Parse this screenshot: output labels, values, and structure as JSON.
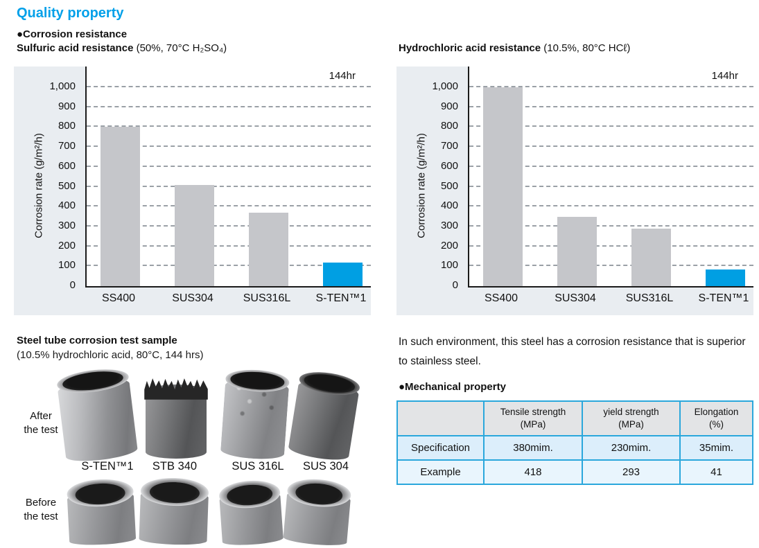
{
  "page": {
    "title": "Quality property",
    "corrosion_heading": "●Corrosion resistance"
  },
  "chart_data": [
    {
      "type": "bar",
      "title": "Sulfuric acid resistance",
      "subtitle": "(50%, 70°C H₂SO₄)",
      "duration_label": "144hr",
      "ylabel": "Corrosion rate (g/m²/h)",
      "ylim": [
        0,
        1000
      ],
      "ytick_step": 100,
      "grid": "dashed-horizontal",
      "legend": "none",
      "categories": [
        "SS400",
        "SUS304",
        "SUS316L",
        "S-TEN™1"
      ],
      "values": [
        800,
        510,
        370,
        120
      ],
      "bar_default_color": "#c5c6ca",
      "highlight_index": 3,
      "highlight_color": "#009fe3"
    },
    {
      "type": "bar",
      "title": "Hydrochloric acid resistance",
      "subtitle": "(10.5%, 80°C HCℓ)",
      "duration_label": "144hr",
      "ylabel": "Corrosion rate (g/m²/h)",
      "ylim": [
        0,
        1000
      ],
      "ytick_step": 100,
      "grid": "dashed-horizontal",
      "legend": "none",
      "categories": [
        "SS400",
        "SUS304",
        "SUS316L",
        "S-TEN™1"
      ],
      "values": [
        1000,
        350,
        290,
        85
      ],
      "bar_default_color": "#c5c6ca",
      "highlight_index": 3,
      "highlight_color": "#009fe3"
    }
  ],
  "tube_section": {
    "title": "Steel tube corrosion test sample",
    "subtitle": "(10.5% hydrochloric acid, 80°C, 144 hrs)",
    "after_label": "After\nthe test",
    "before_label": "Before\nthe test",
    "sample_labels": [
      "S-TEN™1",
      "STB 340",
      "SUS 316L",
      "SUS 304"
    ]
  },
  "right_column": {
    "paragraph": "In such environment, this steel has a corrosion resistance that is superior to stainless steel.",
    "mech_heading": "●Mechanical property",
    "mech_table": {
      "columns": [
        {
          "line1": "Tensile strength",
          "line2": "(MPa)"
        },
        {
          "line1": "yield strength",
          "line2": "(MPa)"
        },
        {
          "line1": "Elongation",
          "line2": "(%)"
        }
      ],
      "rows": [
        {
          "label": "Specification",
          "values": [
            "380mim.",
            "230mim.",
            "35mim."
          ]
        },
        {
          "label": "Example",
          "values": [
            "418",
            "293",
            "41"
          ]
        }
      ]
    }
  },
  "colors": {
    "accent_blue": "#00a0e9",
    "bar_gray": "#c5c6ca",
    "bar_blue": "#009fe3",
    "chart_bg": "#e9edf1",
    "table_border": "#2aa7dc",
    "table_header_bg": "#e3e4e6",
    "table_row_spec_bg": "#dceefb",
    "table_row_example_bg": "#e9f5fd"
  }
}
